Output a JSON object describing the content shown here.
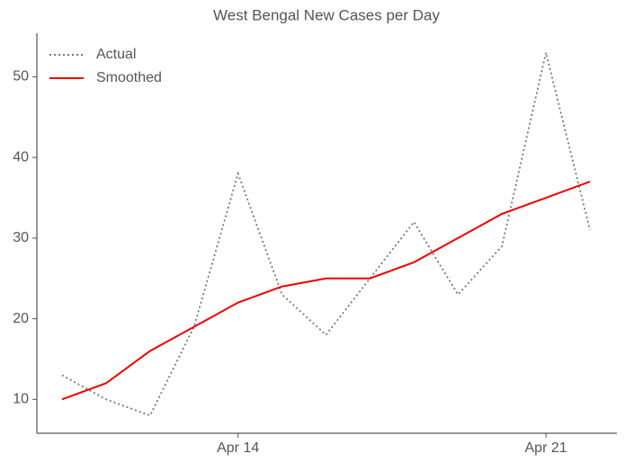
{
  "chart_data": {
    "type": "line",
    "title": "West Bengal New Cases per Day",
    "categories": [
      null,
      null,
      null,
      null,
      "Apr 14",
      null,
      null,
      null,
      null,
      null,
      null,
      "Apr 21",
      null
    ],
    "series": [
      {
        "name": "Actual",
        "color": "#777777",
        "style": "dotted",
        "values": [
          13,
          10,
          8,
          19,
          38,
          23,
          18,
          25,
          32,
          23,
          29,
          53,
          31
        ]
      },
      {
        "name": "Smoothed",
        "color": "#ee0000",
        "style": "solid",
        "values": [
          10,
          12,
          16,
          19,
          22,
          24,
          25,
          25,
          27,
          30,
          33,
          35,
          37
        ]
      }
    ],
    "ylim": [
      5.8,
      55.4
    ],
    "yticks": [
      10,
      20,
      30,
      40,
      50
    ],
    "grid": false,
    "legend": "upper left"
  }
}
